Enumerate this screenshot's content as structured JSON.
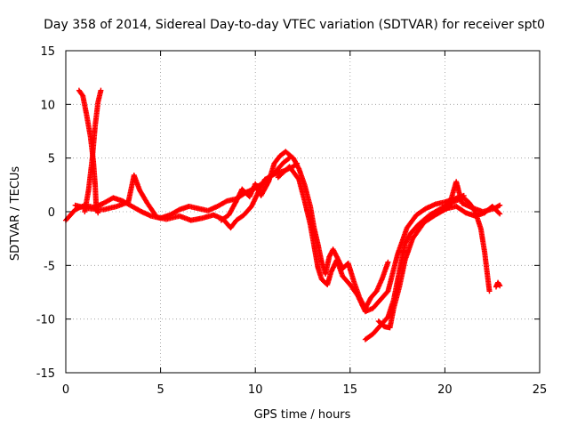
{
  "chart_data": {
    "type": "scatter",
    "title": "Day 358 of 2014, Sidereal Day-to-day VTEC variation (SDTVAR) for receiver spt0",
    "xlabel": "GPS time / hours",
    "ylabel": "SDTVAR / TECUs",
    "xlim": [
      0,
      25
    ],
    "ylim": [
      -15,
      15
    ],
    "x_ticks": [
      0,
      5,
      10,
      15,
      20,
      25
    ],
    "y_ticks": [
      -15,
      -10,
      -5,
      0,
      5,
      10,
      15
    ],
    "grid": true,
    "marker": "+",
    "series_color": "#ff0000",
    "series": [
      {
        "name": "track-1",
        "points": [
          [
            0,
            -0.8
          ],
          [
            0.5,
            0.2
          ],
          [
            1,
            0.6
          ],
          [
            1.5,
            0.4
          ],
          [
            2,
            0.8
          ],
          [
            2.5,
            1.3
          ],
          [
            3,
            1.0
          ],
          [
            3.5,
            0.5
          ],
          [
            4,
            0.0
          ],
          [
            4.5,
            -0.4
          ],
          [
            5,
            -0.6
          ],
          [
            5.5,
            -0.3
          ],
          [
            6,
            0.2
          ],
          [
            6.5,
            0.5
          ],
          [
            7,
            0.3
          ],
          [
            7.5,
            0.1
          ],
          [
            8,
            0.5
          ],
          [
            8.5,
            1.0
          ],
          [
            9,
            1.2
          ],
          [
            9.5,
            1.8
          ],
          [
            10,
            2.2
          ],
          [
            10.5,
            2.8
          ],
          [
            11,
            3.6
          ],
          [
            11.5,
            4.6
          ],
          [
            11.8,
            5.0
          ]
        ]
      },
      {
        "name": "track-2",
        "points": [
          [
            0.7,
            11.3
          ],
          [
            0.9,
            10.8
          ],
          [
            1.1,
            9.0
          ],
          [
            1.3,
            7.0
          ],
          [
            1.45,
            4.8
          ],
          [
            1.55,
            2.5
          ],
          [
            1.6,
            0.6
          ],
          [
            1.7,
            -0.1
          ]
        ]
      },
      {
        "name": "track-3",
        "points": [
          [
            1.0,
            0.0
          ],
          [
            1.2,
            2.0
          ],
          [
            1.4,
            5.0
          ],
          [
            1.55,
            8.0
          ],
          [
            1.7,
            10.2
          ],
          [
            1.85,
            11.3
          ]
        ]
      },
      {
        "name": "track-4",
        "points": [
          [
            0.5,
            0.6
          ],
          [
            1.2,
            0.3
          ],
          [
            2,
            0.2
          ],
          [
            2.7,
            0.5
          ],
          [
            3.3,
            0.9
          ],
          [
            3.6,
            3.4
          ],
          [
            3.9,
            2.0
          ],
          [
            4.3,
            0.8
          ],
          [
            4.8,
            -0.5
          ],
          [
            5.3,
            -0.7
          ],
          [
            6,
            -0.4
          ],
          [
            6.6,
            -0.8
          ],
          [
            7.2,
            -0.6
          ],
          [
            7.8,
            -0.3
          ],
          [
            8.3,
            -0.7
          ],
          [
            8.7,
            -1.5
          ],
          [
            9,
            -0.8
          ],
          [
            9.4,
            -0.3
          ],
          [
            9.8,
            0.5
          ],
          [
            10.2,
            2.0
          ],
          [
            10.5,
            3.0
          ],
          [
            11,
            3.5
          ],
          [
            11.5,
            3.8
          ],
          [
            12,
            4.2
          ],
          [
            12.2,
            4.5
          ]
        ]
      },
      {
        "name": "track-5",
        "points": [
          [
            8.2,
            -0.8
          ],
          [
            8.6,
            -0.3
          ],
          [
            9,
            1.0
          ],
          [
            9.3,
            2.1
          ],
          [
            9.7,
            1.4
          ],
          [
            10,
            2.6
          ],
          [
            10.3,
            1.5
          ],
          [
            10.7,
            2.8
          ],
          [
            11,
            4.5
          ],
          [
            11.3,
            5.2
          ],
          [
            11.6,
            5.6
          ],
          [
            12,
            5.0
          ],
          [
            12.3,
            4.0
          ],
          [
            12.6,
            2.5
          ],
          [
            12.9,
            0.5
          ],
          [
            13.1,
            -1.5
          ],
          [
            13.3,
            -3.0
          ],
          [
            13.5,
            -4.7
          ],
          [
            13.7,
            -5.8
          ],
          [
            13.9,
            -4.2
          ],
          [
            14.1,
            -3.5
          ],
          [
            14.3,
            -4.2
          ],
          [
            14.6,
            -5.3
          ],
          [
            14.9,
            -4.8
          ],
          [
            15.2,
            -6.5
          ],
          [
            15.5,
            -8.0
          ],
          [
            15.8,
            -9.0
          ],
          [
            16.1,
            -8.0
          ],
          [
            16.4,
            -7.4
          ],
          [
            16.7,
            -6.2
          ],
          [
            17,
            -4.7
          ]
        ]
      },
      {
        "name": "track-6",
        "points": [
          [
            11.2,
            3.2
          ],
          [
            11.8,
            4.2
          ],
          [
            12.3,
            3.0
          ],
          [
            12.6,
            1.0
          ],
          [
            12.9,
            -1.2
          ],
          [
            13.1,
            -3.2
          ],
          [
            13.3,
            -5.2
          ],
          [
            13.5,
            -6.3
          ],
          [
            13.8,
            -6.8
          ],
          [
            14.0,
            -5.6
          ],
          [
            14.3,
            -4.5
          ],
          [
            14.6,
            -6.0
          ],
          [
            15.0,
            -6.8
          ],
          [
            15.4,
            -7.8
          ],
          [
            15.8,
            -9.3
          ],
          [
            16.2,
            -9.0
          ],
          [
            16.6,
            -8.2
          ],
          [
            17.0,
            -7.4
          ],
          [
            17.5,
            -4.0
          ],
          [
            18.0,
            -1.5
          ],
          [
            18.5,
            -0.3
          ],
          [
            19.0,
            0.3
          ],
          [
            19.5,
            0.7
          ],
          [
            20,
            0.9
          ],
          [
            20.5,
            1.2
          ],
          [
            21,
            1.5
          ]
        ]
      },
      {
        "name": "track-7",
        "points": [
          [
            15.8,
            -11.9
          ],
          [
            16.2,
            -11.4
          ],
          [
            16.6,
            -10.6
          ],
          [
            17.0,
            -9.8
          ],
          [
            17.3,
            -8.2
          ],
          [
            17.6,
            -5.5
          ],
          [
            17.9,
            -3.0
          ],
          [
            18.2,
            -2.0
          ],
          [
            18.6,
            -1.2
          ],
          [
            19.2,
            -0.3
          ],
          [
            19.8,
            0.3
          ],
          [
            20.4,
            0.9
          ],
          [
            21,
            1.3
          ],
          [
            21.3,
            0.8
          ],
          [
            21.6,
            0.0
          ],
          [
            21.9,
            -1.6
          ],
          [
            22.1,
            -3.8
          ],
          [
            22.25,
            -6.0
          ],
          [
            22.35,
            -7.4
          ]
        ]
      },
      {
        "name": "track-8",
        "points": [
          [
            16.5,
            -10.2
          ],
          [
            16.8,
            -10.7
          ],
          [
            17.1,
            -10.8
          ],
          [
            17.3,
            -9.0
          ],
          [
            17.6,
            -7.0
          ],
          [
            17.9,
            -4.5
          ],
          [
            18.3,
            -2.5
          ],
          [
            18.9,
            -1.0
          ],
          [
            19.5,
            -0.3
          ],
          [
            20.2,
            0.4
          ],
          [
            20.6,
            2.8
          ],
          [
            20.9,
            0.8
          ],
          [
            21.4,
            0.4
          ],
          [
            22,
            0.0
          ],
          [
            22.6,
            0.3
          ],
          [
            22.9,
            0.6
          ]
        ]
      },
      {
        "name": "track-9",
        "points": [
          [
            19.5,
            -0.2
          ],
          [
            20.1,
            0.3
          ],
          [
            20.6,
            0.5
          ],
          [
            21.1,
            -0.1
          ],
          [
            21.6,
            -0.4
          ],
          [
            22.1,
            -0.1
          ],
          [
            22.5,
            0.5
          ],
          [
            22.9,
            -0.2
          ]
        ]
      },
      {
        "name": "track-10",
        "points": [
          [
            22.7,
            -7.0
          ],
          [
            22.8,
            -6.6
          ],
          [
            22.9,
            -6.9
          ]
        ]
      }
    ]
  }
}
